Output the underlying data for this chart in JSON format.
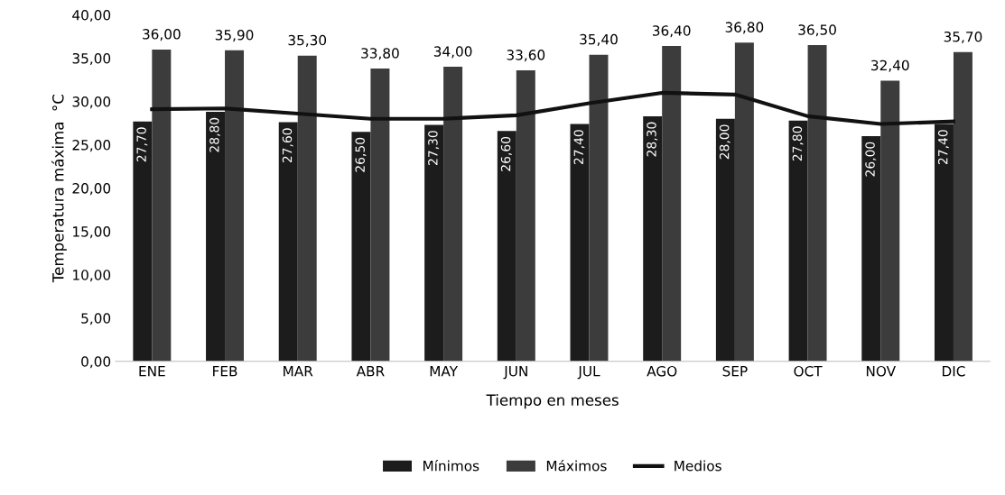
{
  "chart_data": {
    "type": "bar",
    "xlabel": "Tiempo en meses",
    "ylabel": "Temperatura máxima  °C",
    "categories": [
      "ENE",
      "FEB",
      "MAR",
      "ABR",
      "MAY",
      "JUN",
      "JUL",
      "AGO",
      "SEP",
      "OCT",
      "NOV",
      "DIC"
    ],
    "series": [
      {
        "name": "Mínimos",
        "color": "#1c1c1c",
        "values": [
          27.7,
          28.8,
          27.6,
          26.5,
          27.3,
          26.6,
          27.4,
          28.3,
          28.0,
          27.8,
          26.0,
          27.4
        ],
        "value_labels": [
          "27,70",
          "28,80",
          "27,60",
          "26,50",
          "27,30",
          "26,60",
          "27,40",
          "28,30",
          "28,00",
          "27,80",
          "26,00",
          "27,40"
        ]
      },
      {
        "name": "Máximos",
        "color": "#3c3c3c",
        "values": [
          36.0,
          35.9,
          35.3,
          33.8,
          34.0,
          33.6,
          35.4,
          36.4,
          36.8,
          36.5,
          32.4,
          35.7
        ],
        "value_labels": [
          "36,00",
          "35,90",
          "35,30",
          "33,80",
          "34,00",
          "33,60",
          "35,40",
          "36,40",
          "36,80",
          "36,50",
          "32,40",
          "35,70"
        ]
      },
      {
        "name": "Medios",
        "type": "line",
        "color": "#111111",
        "values": [
          29.1,
          29.2,
          28.6,
          28.0,
          28.0,
          28.4,
          29.8,
          31.0,
          30.8,
          28.3,
          27.4,
          27.7
        ]
      }
    ],
    "ylim": [
      0,
      40
    ],
    "yticks": [
      {
        "value": 0,
        "label": "0,00"
      },
      {
        "value": 5,
        "label": "5,00"
      },
      {
        "value": 10,
        "label": "10,00"
      },
      {
        "value": 15,
        "label": "15,00"
      },
      {
        "value": 20,
        "label": "20,00"
      },
      {
        "value": 25,
        "label": "25,00"
      },
      {
        "value": 30,
        "label": "30,00"
      },
      {
        "value": 35,
        "label": "35,00"
      },
      {
        "value": 40,
        "label": "40,00"
      }
    ],
    "legend": "bottom",
    "grid": false,
    "line_style": "solid",
    "marker": "none"
  }
}
